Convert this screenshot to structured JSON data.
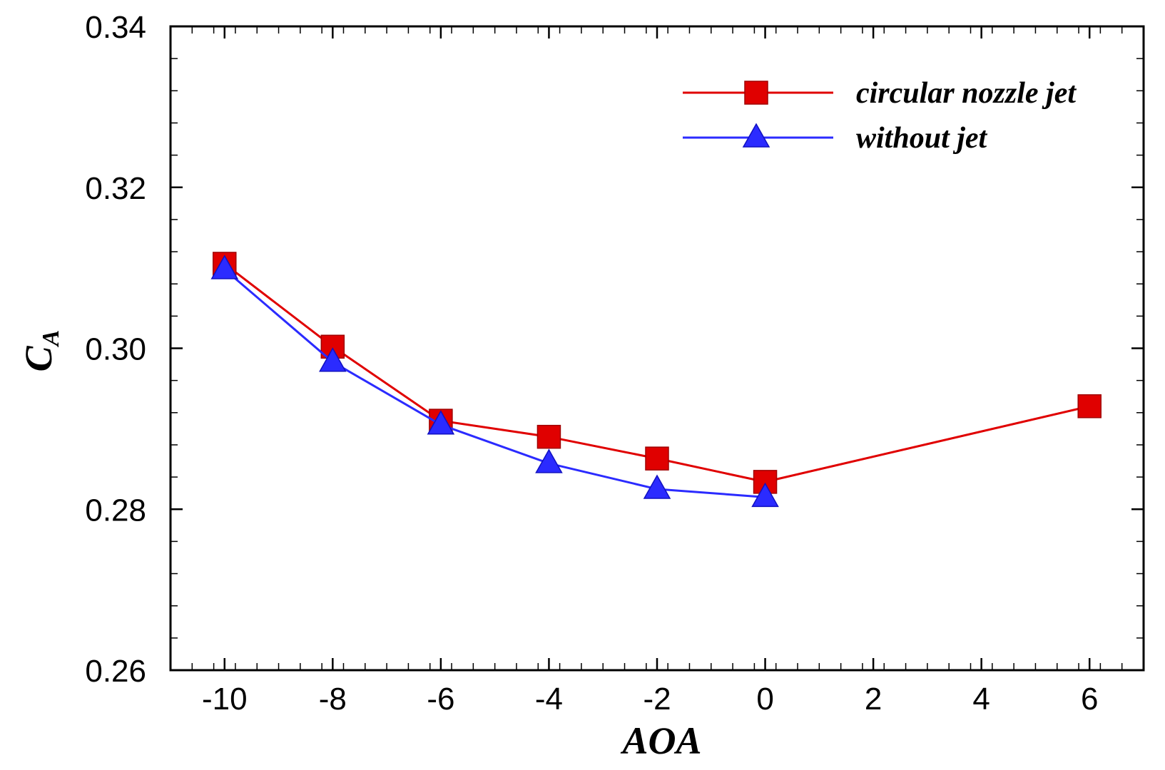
{
  "chart_data": {
    "type": "line",
    "title": "",
    "xlabel": "AOA",
    "ylabel_main": "C",
    "ylabel_sub": "A",
    "xlim": [
      -11,
      7
    ],
    "ylim": [
      0.26,
      0.34
    ],
    "xticks": [
      -10,
      -8,
      -6,
      -4,
      -2,
      0,
      2,
      4,
      6
    ],
    "xtick_labels": [
      "-10",
      "-8",
      "-6",
      "-4",
      "-2",
      "0",
      "2",
      "4",
      "6"
    ],
    "yticks": [
      0.26,
      0.28,
      0.3,
      0.32,
      0.34
    ],
    "ytick_labels": [
      "0.26",
      "0.28",
      "0.30",
      "0.32",
      "0.34"
    ],
    "grid": false,
    "legend_position": "top-right",
    "series": [
      {
        "name": "circular nozzle jet",
        "color": "#e00000",
        "marker": "square",
        "x": [
          -10,
          -8,
          -6,
          -4,
          -2,
          0,
          6
        ],
        "y": [
          0.3105,
          0.3002,
          0.291,
          0.289,
          0.2863,
          0.2834,
          0.2928
        ]
      },
      {
        "name": "without jet",
        "color": "#2b2bff",
        "marker": "triangle",
        "x": [
          -10,
          -8,
          -6,
          -4,
          -2,
          0
        ],
        "y": [
          0.3098,
          0.2983,
          0.2905,
          0.2857,
          0.2825,
          0.2815
        ]
      }
    ]
  }
}
